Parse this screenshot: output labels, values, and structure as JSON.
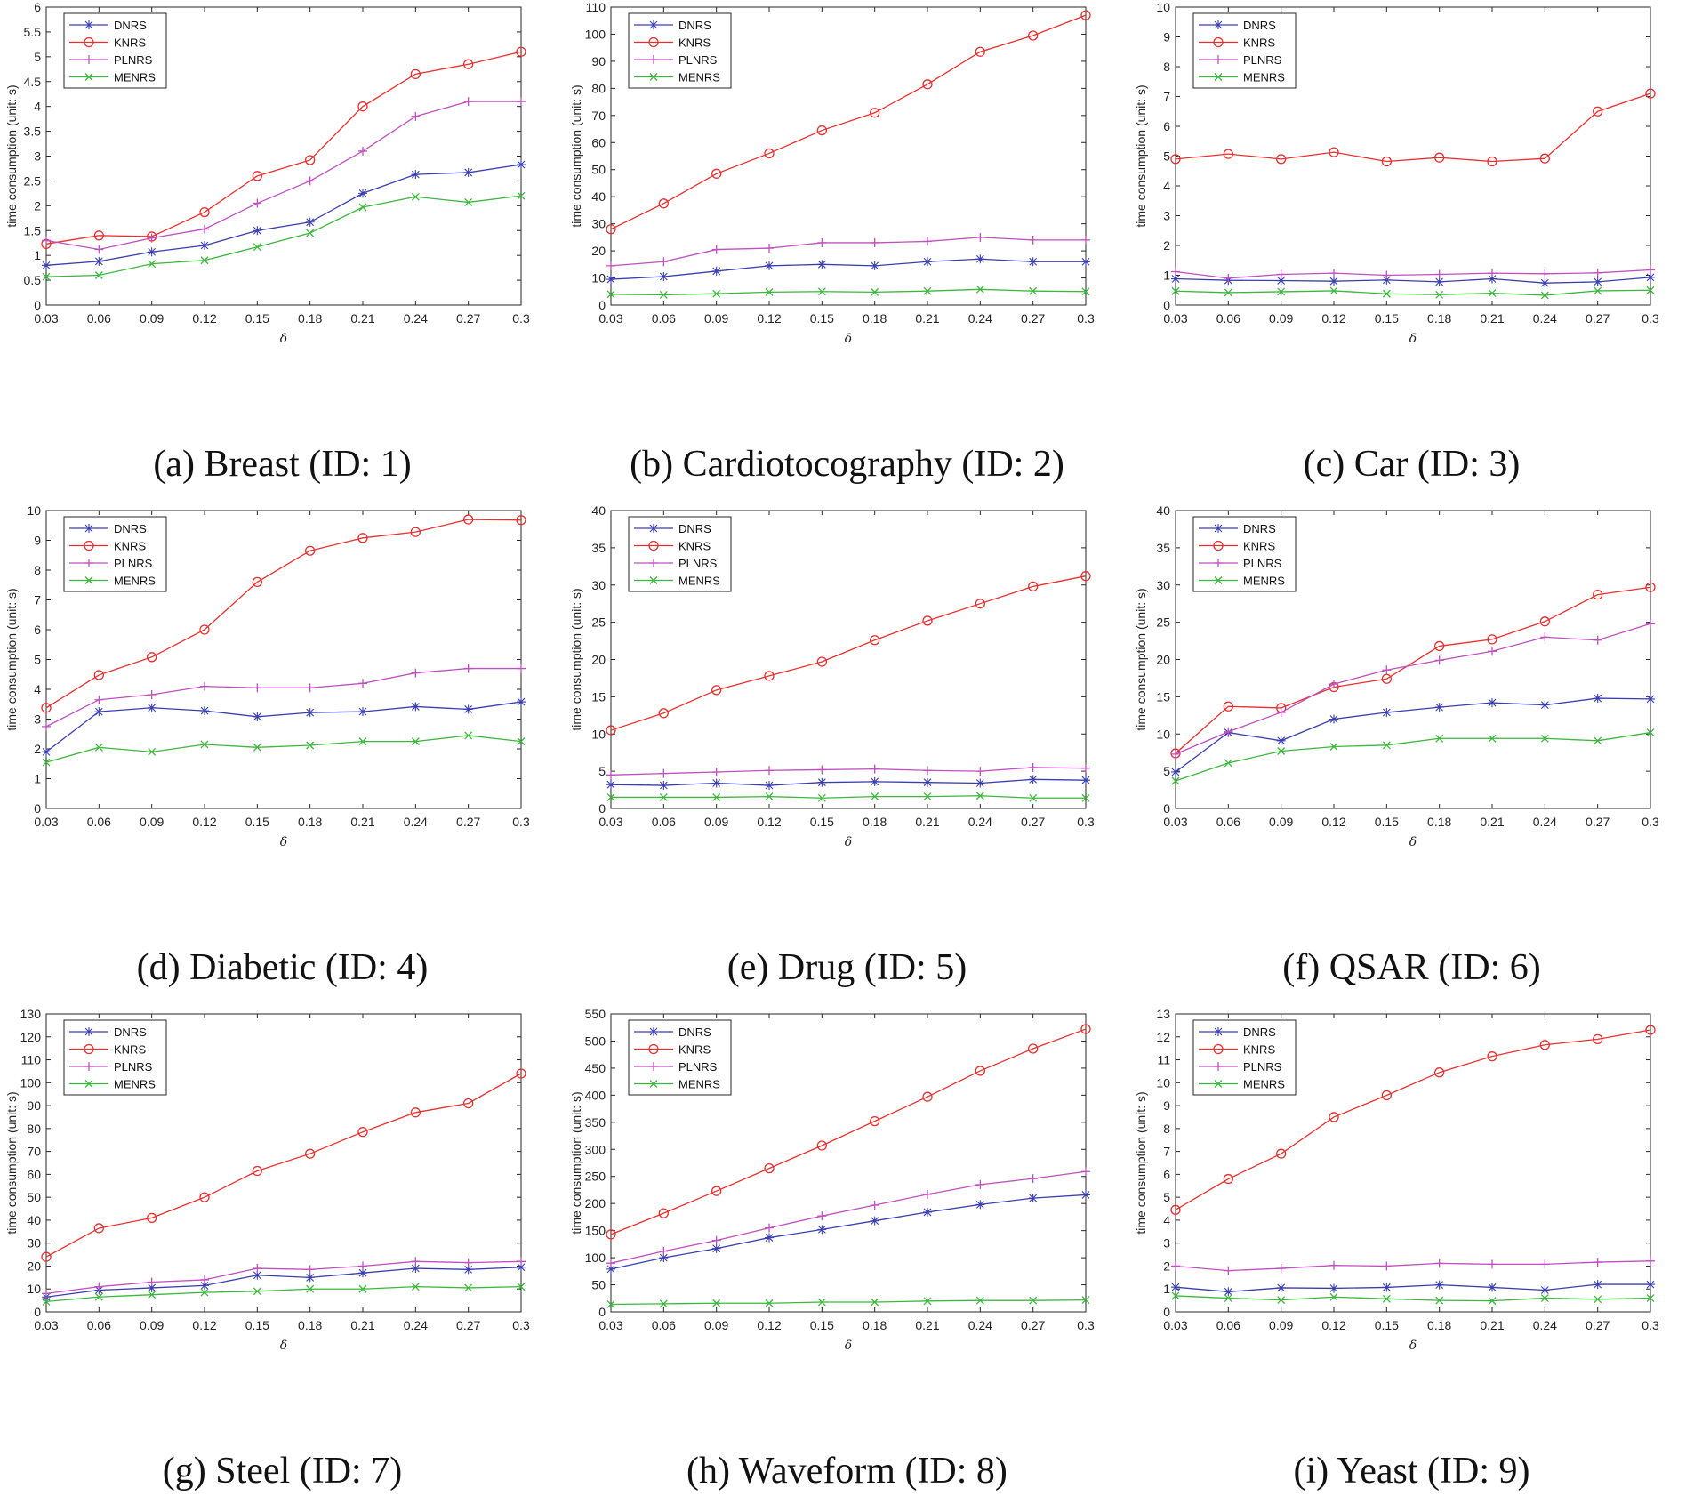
{
  "chart_data": [
    {
      "type": "line",
      "caption": "(a) Breast (ID: 1)",
      "xlabel": "δ",
      "ylabel": "time consumption (unit: s)",
      "x": [
        0.03,
        0.06,
        0.09,
        0.12,
        0.15,
        0.18,
        0.21,
        0.24,
        0.27,
        0.3
      ],
      "xticks": [
        "0.03",
        "0.06",
        "0.09",
        "0.12",
        "0.15",
        "0.18",
        "0.21",
        "0.24",
        "0.27",
        "0.3"
      ],
      "ylim": [
        0,
        6
      ],
      "yticks": [
        "0",
        "0.5",
        "1",
        "1.5",
        "2",
        "2.5",
        "3",
        "3.5",
        "4",
        "4.5",
        "5",
        "5.5",
        "6"
      ],
      "series": [
        {
          "name": "DNRS",
          "values": [
            0.8,
            0.88,
            1.07,
            1.2,
            1.5,
            1.67,
            2.25,
            2.63,
            2.67,
            2.83
          ]
        },
        {
          "name": "KNRS",
          "values": [
            1.23,
            1.4,
            1.38,
            1.87,
            2.6,
            2.92,
            4.0,
            4.65,
            4.85,
            5.1
          ]
        },
        {
          "name": "PLNRS",
          "values": [
            1.3,
            1.12,
            1.35,
            1.53,
            2.05,
            2.5,
            3.1,
            3.8,
            4.1,
            4.1
          ]
        },
        {
          "name": "MENRS",
          "values": [
            0.57,
            0.6,
            0.83,
            0.9,
            1.17,
            1.45,
            1.97,
            2.18,
            2.07,
            2.2
          ]
        }
      ]
    },
    {
      "type": "line",
      "caption": "(b) Cardiotocography (ID: 2)",
      "xlabel": "δ",
      "ylabel": "time consumption (unit: s)",
      "x": [
        0.03,
        0.06,
        0.09,
        0.12,
        0.15,
        0.18,
        0.21,
        0.24,
        0.27,
        0.3
      ],
      "xticks": [
        "0.03",
        "0.06",
        "0.09",
        "0.12",
        "0.15",
        "0.18",
        "0.21",
        "0.24",
        "0.27",
        "0.3"
      ],
      "ylim": [
        0,
        110
      ],
      "yticks": [
        "0",
        "10",
        "20",
        "30",
        "40",
        "50",
        "60",
        "70",
        "80",
        "90",
        "100",
        "110"
      ],
      "series": [
        {
          "name": "DNRS",
          "values": [
            9.5,
            10.5,
            12.5,
            14.5,
            15,
            14.5,
            16,
            17,
            16,
            16
          ]
        },
        {
          "name": "KNRS",
          "values": [
            28,
            37.5,
            48.5,
            56,
            64.5,
            71,
            81.5,
            93.5,
            99.5,
            107
          ]
        },
        {
          "name": "PLNRS",
          "values": [
            14.5,
            16,
            20.5,
            21,
            23,
            23,
            23.5,
            25,
            24,
            24
          ]
        },
        {
          "name": "MENRS",
          "values": [
            4,
            3.8,
            4.2,
            4.8,
            5,
            4.8,
            5.2,
            5.8,
            5.2,
            5
          ]
        }
      ]
    },
    {
      "type": "line",
      "caption": "(c) Car (ID: 3)",
      "xlabel": "δ",
      "ylabel": "time consumption (unit: s)",
      "x": [
        0.03,
        0.06,
        0.09,
        0.12,
        0.15,
        0.18,
        0.21,
        0.24,
        0.27,
        0.3
      ],
      "xticks": [
        "0.03",
        "0.06",
        "0.09",
        "0.12",
        "0.15",
        "0.18",
        "0.21",
        "0.24",
        "0.27",
        "0.3"
      ],
      "ylim": [
        0,
        10
      ],
      "yticks": [
        "0",
        "1",
        "2",
        "3",
        "4",
        "5",
        "6",
        "7",
        "8",
        "9",
        "10"
      ],
      "series": [
        {
          "name": "DNRS",
          "values": [
            0.88,
            0.83,
            0.82,
            0.8,
            0.84,
            0.78,
            0.88,
            0.74,
            0.78,
            0.93
          ]
        },
        {
          "name": "KNRS",
          "values": [
            4.9,
            5.07,
            4.9,
            5.13,
            4.82,
            4.95,
            4.82,
            4.92,
            6.5,
            7.1
          ]
        },
        {
          "name": "PLNRS",
          "values": [
            1.12,
            0.9,
            1.03,
            1.07,
            1.0,
            1.03,
            1.07,
            1.05,
            1.08,
            1.18
          ]
        },
        {
          "name": "MENRS",
          "values": [
            0.47,
            0.42,
            0.45,
            0.48,
            0.38,
            0.35,
            0.4,
            0.33,
            0.48,
            0.5
          ]
        }
      ]
    },
    {
      "type": "line",
      "caption": "(d) Diabetic (ID: 4)",
      "xlabel": "δ",
      "ylabel": "time consumption (unit: s)",
      "x": [
        0.03,
        0.06,
        0.09,
        0.12,
        0.15,
        0.18,
        0.21,
        0.24,
        0.27,
        0.3
      ],
      "xticks": [
        "0.03",
        "0.06",
        "0.09",
        "0.12",
        "0.15",
        "0.18",
        "0.21",
        "0.24",
        "0.27",
        "0.3"
      ],
      "ylim": [
        0,
        10
      ],
      "yticks": [
        "0",
        "1",
        "2",
        "3",
        "4",
        "5",
        "6",
        "7",
        "8",
        "9",
        "10"
      ],
      "series": [
        {
          "name": "DNRS",
          "values": [
            1.9,
            3.25,
            3.38,
            3.28,
            3.08,
            3.22,
            3.25,
            3.42,
            3.33,
            3.58
          ]
        },
        {
          "name": "KNRS",
          "values": [
            3.38,
            4.48,
            5.08,
            6.0,
            7.6,
            8.65,
            9.08,
            9.28,
            9.7,
            9.68
          ]
        },
        {
          "name": "PLNRS",
          "values": [
            2.75,
            3.65,
            3.82,
            4.1,
            4.05,
            4.05,
            4.2,
            4.55,
            4.7,
            4.7
          ]
        },
        {
          "name": "MENRS",
          "values": [
            1.55,
            2.05,
            1.9,
            2.15,
            2.05,
            2.12,
            2.25,
            2.25,
            2.45,
            2.25
          ]
        }
      ]
    },
    {
      "type": "line",
      "caption": "(e) Drug (ID: 5)",
      "xlabel": "δ",
      "ylabel": "time consumption (unit: s)",
      "x": [
        0.03,
        0.06,
        0.09,
        0.12,
        0.15,
        0.18,
        0.21,
        0.24,
        0.27,
        0.3
      ],
      "xticks": [
        "0.03",
        "0.06",
        "0.09",
        "0.12",
        "0.15",
        "0.18",
        "0.21",
        "0.24",
        "0.27",
        "0.3"
      ],
      "ylim": [
        0,
        40
      ],
      "yticks": [
        "0",
        "5",
        "10",
        "15",
        "20",
        "25",
        "30",
        "35",
        "40"
      ],
      "series": [
        {
          "name": "DNRS",
          "values": [
            3.2,
            3.1,
            3.4,
            3.1,
            3.5,
            3.6,
            3.5,
            3.4,
            3.9,
            3.8
          ]
        },
        {
          "name": "KNRS",
          "values": [
            10.5,
            12.8,
            15.9,
            17.8,
            19.7,
            22.6,
            25.2,
            27.5,
            29.8,
            31.2
          ]
        },
        {
          "name": "PLNRS",
          "values": [
            4.5,
            4.7,
            4.9,
            5.1,
            5.2,
            5.3,
            5.1,
            5.0,
            5.5,
            5.4
          ]
        },
        {
          "name": "MENRS",
          "values": [
            1.5,
            1.5,
            1.5,
            1.6,
            1.4,
            1.6,
            1.6,
            1.7,
            1.4,
            1.4
          ]
        }
      ]
    },
    {
      "type": "line",
      "caption": "(f) QSAR (ID: 6)",
      "xlabel": "δ",
      "ylabel": "time consumption (unit: s)",
      "x": [
        0.03,
        0.06,
        0.09,
        0.12,
        0.15,
        0.18,
        0.21,
        0.24,
        0.27,
        0.3
      ],
      "xticks": [
        "0.03",
        "0.06",
        "0.09",
        "0.12",
        "0.15",
        "0.18",
        "0.21",
        "0.24",
        "0.27",
        "0.3"
      ],
      "ylim": [
        0,
        40
      ],
      "yticks": [
        "0",
        "5",
        "10",
        "15",
        "20",
        "25",
        "30",
        "35",
        "40"
      ],
      "series": [
        {
          "name": "DNRS",
          "values": [
            4.9,
            10.2,
            9.1,
            12,
            12.9,
            13.6,
            14.2,
            13.9,
            14.8,
            14.7
          ]
        },
        {
          "name": "KNRS",
          "values": [
            7.4,
            13.7,
            13.5,
            16.3,
            17.4,
            21.8,
            22.7,
            25.1,
            28.7,
            29.7
          ]
        },
        {
          "name": "PLNRS",
          "values": [
            7.3,
            10.3,
            12.9,
            16.7,
            18.6,
            19.9,
            21.1,
            23,
            22.6,
            24.8
          ]
        },
        {
          "name": "MENRS",
          "values": [
            3.7,
            6.1,
            7.7,
            8.3,
            8.5,
            9.4,
            9.4,
            9.4,
            9.1,
            10.2
          ]
        }
      ]
    },
    {
      "type": "line",
      "caption": "(g) Steel (ID: 7)",
      "xlabel": "δ",
      "ylabel": "time consumption (unit: s)",
      "x": [
        0.03,
        0.06,
        0.09,
        0.12,
        0.15,
        0.18,
        0.21,
        0.24,
        0.27,
        0.3
      ],
      "xticks": [
        "0.03",
        "0.06",
        "0.09",
        "0.12",
        "0.15",
        "0.18",
        "0.21",
        "0.24",
        "0.27",
        "0.3"
      ],
      "ylim": [
        0,
        130
      ],
      "yticks": [
        "0",
        "10",
        "20",
        "30",
        "40",
        "50",
        "60",
        "70",
        "80",
        "90",
        "100",
        "110",
        "120",
        "130"
      ],
      "series": [
        {
          "name": "DNRS",
          "values": [
            6.5,
            9.5,
            10.5,
            11.5,
            16,
            15,
            17,
            19,
            18.5,
            19.5
          ]
        },
        {
          "name": "KNRS",
          "values": [
            24,
            36.5,
            41,
            50,
            61.5,
            69,
            78.5,
            87,
            91,
            104
          ]
        },
        {
          "name": "PLNRS",
          "values": [
            8,
            11,
            13,
            14,
            19,
            18.5,
            20,
            22,
            21.5,
            22
          ]
        },
        {
          "name": "MENRS",
          "values": [
            4.5,
            6.5,
            7.5,
            8.5,
            9,
            10,
            10,
            11,
            10.5,
            11
          ]
        }
      ]
    },
    {
      "type": "line",
      "caption": "(h) Waveform (ID: 8)",
      "xlabel": "δ",
      "ylabel": "time consumption (unit: s)",
      "x": [
        0.03,
        0.06,
        0.09,
        0.12,
        0.15,
        0.18,
        0.21,
        0.24,
        0.27,
        0.3
      ],
      "xticks": [
        "0.03",
        "0.06",
        "0.09",
        "0.12",
        "0.15",
        "0.18",
        "0.21",
        "0.24",
        "0.27",
        "0.3"
      ],
      "ylim": [
        0,
        550
      ],
      "yticks": [
        "0",
        "50",
        "100",
        "150",
        "200",
        "250",
        "300",
        "350",
        "400",
        "450",
        "500",
        "550"
      ],
      "series": [
        {
          "name": "DNRS",
          "values": [
            79,
            100,
            117,
            137,
            152,
            168,
            184,
            198,
            210,
            216
          ]
        },
        {
          "name": "KNRS",
          "values": [
            143,
            182,
            223,
            265,
            307,
            352,
            397,
            445,
            486,
            522
          ]
        },
        {
          "name": "PLNRS",
          "values": [
            90,
            112,
            132,
            155,
            177,
            197,
            217,
            235,
            246,
            259
          ]
        },
        {
          "name": "MENRS",
          "values": [
            14,
            15,
            16,
            16,
            18,
            18,
            20,
            21,
            21,
            22
          ]
        }
      ]
    },
    {
      "type": "line",
      "caption": "(i) Yeast (ID: 9)",
      "xlabel": "δ",
      "ylabel": "time consumption (unit: s)",
      "x": [
        0.03,
        0.06,
        0.09,
        0.12,
        0.15,
        0.18,
        0.21,
        0.24,
        0.27,
        0.3
      ],
      "xticks": [
        "0.03",
        "0.06",
        "0.09",
        "0.12",
        "0.15",
        "0.18",
        "0.21",
        "0.24",
        "0.27",
        "0.3"
      ],
      "ylim": [
        0,
        13
      ],
      "yticks": [
        "0",
        "1",
        "2",
        "3",
        "4",
        "5",
        "6",
        "7",
        "8",
        "9",
        "10",
        "11",
        "12",
        "13"
      ],
      "series": [
        {
          "name": "DNRS",
          "values": [
            1.08,
            0.88,
            1.05,
            1.03,
            1.07,
            1.18,
            1.07,
            0.95,
            1.2,
            1.2
          ]
        },
        {
          "name": "KNRS",
          "values": [
            4.45,
            5.8,
            6.9,
            8.5,
            9.45,
            10.45,
            11.15,
            11.65,
            11.9,
            12.3
          ]
        },
        {
          "name": "PLNRS",
          "values": [
            2.0,
            1.8,
            1.9,
            2.03,
            2.0,
            2.12,
            2.08,
            2.08,
            2.17,
            2.22
          ]
        },
        {
          "name": "MENRS",
          "values": [
            0.7,
            0.6,
            0.52,
            0.65,
            0.57,
            0.5,
            0.48,
            0.6,
            0.55,
            0.6
          ]
        }
      ]
    }
  ],
  "series_colors": {
    "DNRS": "#3a3fb0",
    "KNRS": "#e8302e",
    "PLNRS": "#c050c0",
    "MENRS": "#3cb83c"
  },
  "series_markers": {
    "DNRS": "asterisk",
    "KNRS": "circle",
    "PLNRS": "plus",
    "MENRS": "x"
  }
}
